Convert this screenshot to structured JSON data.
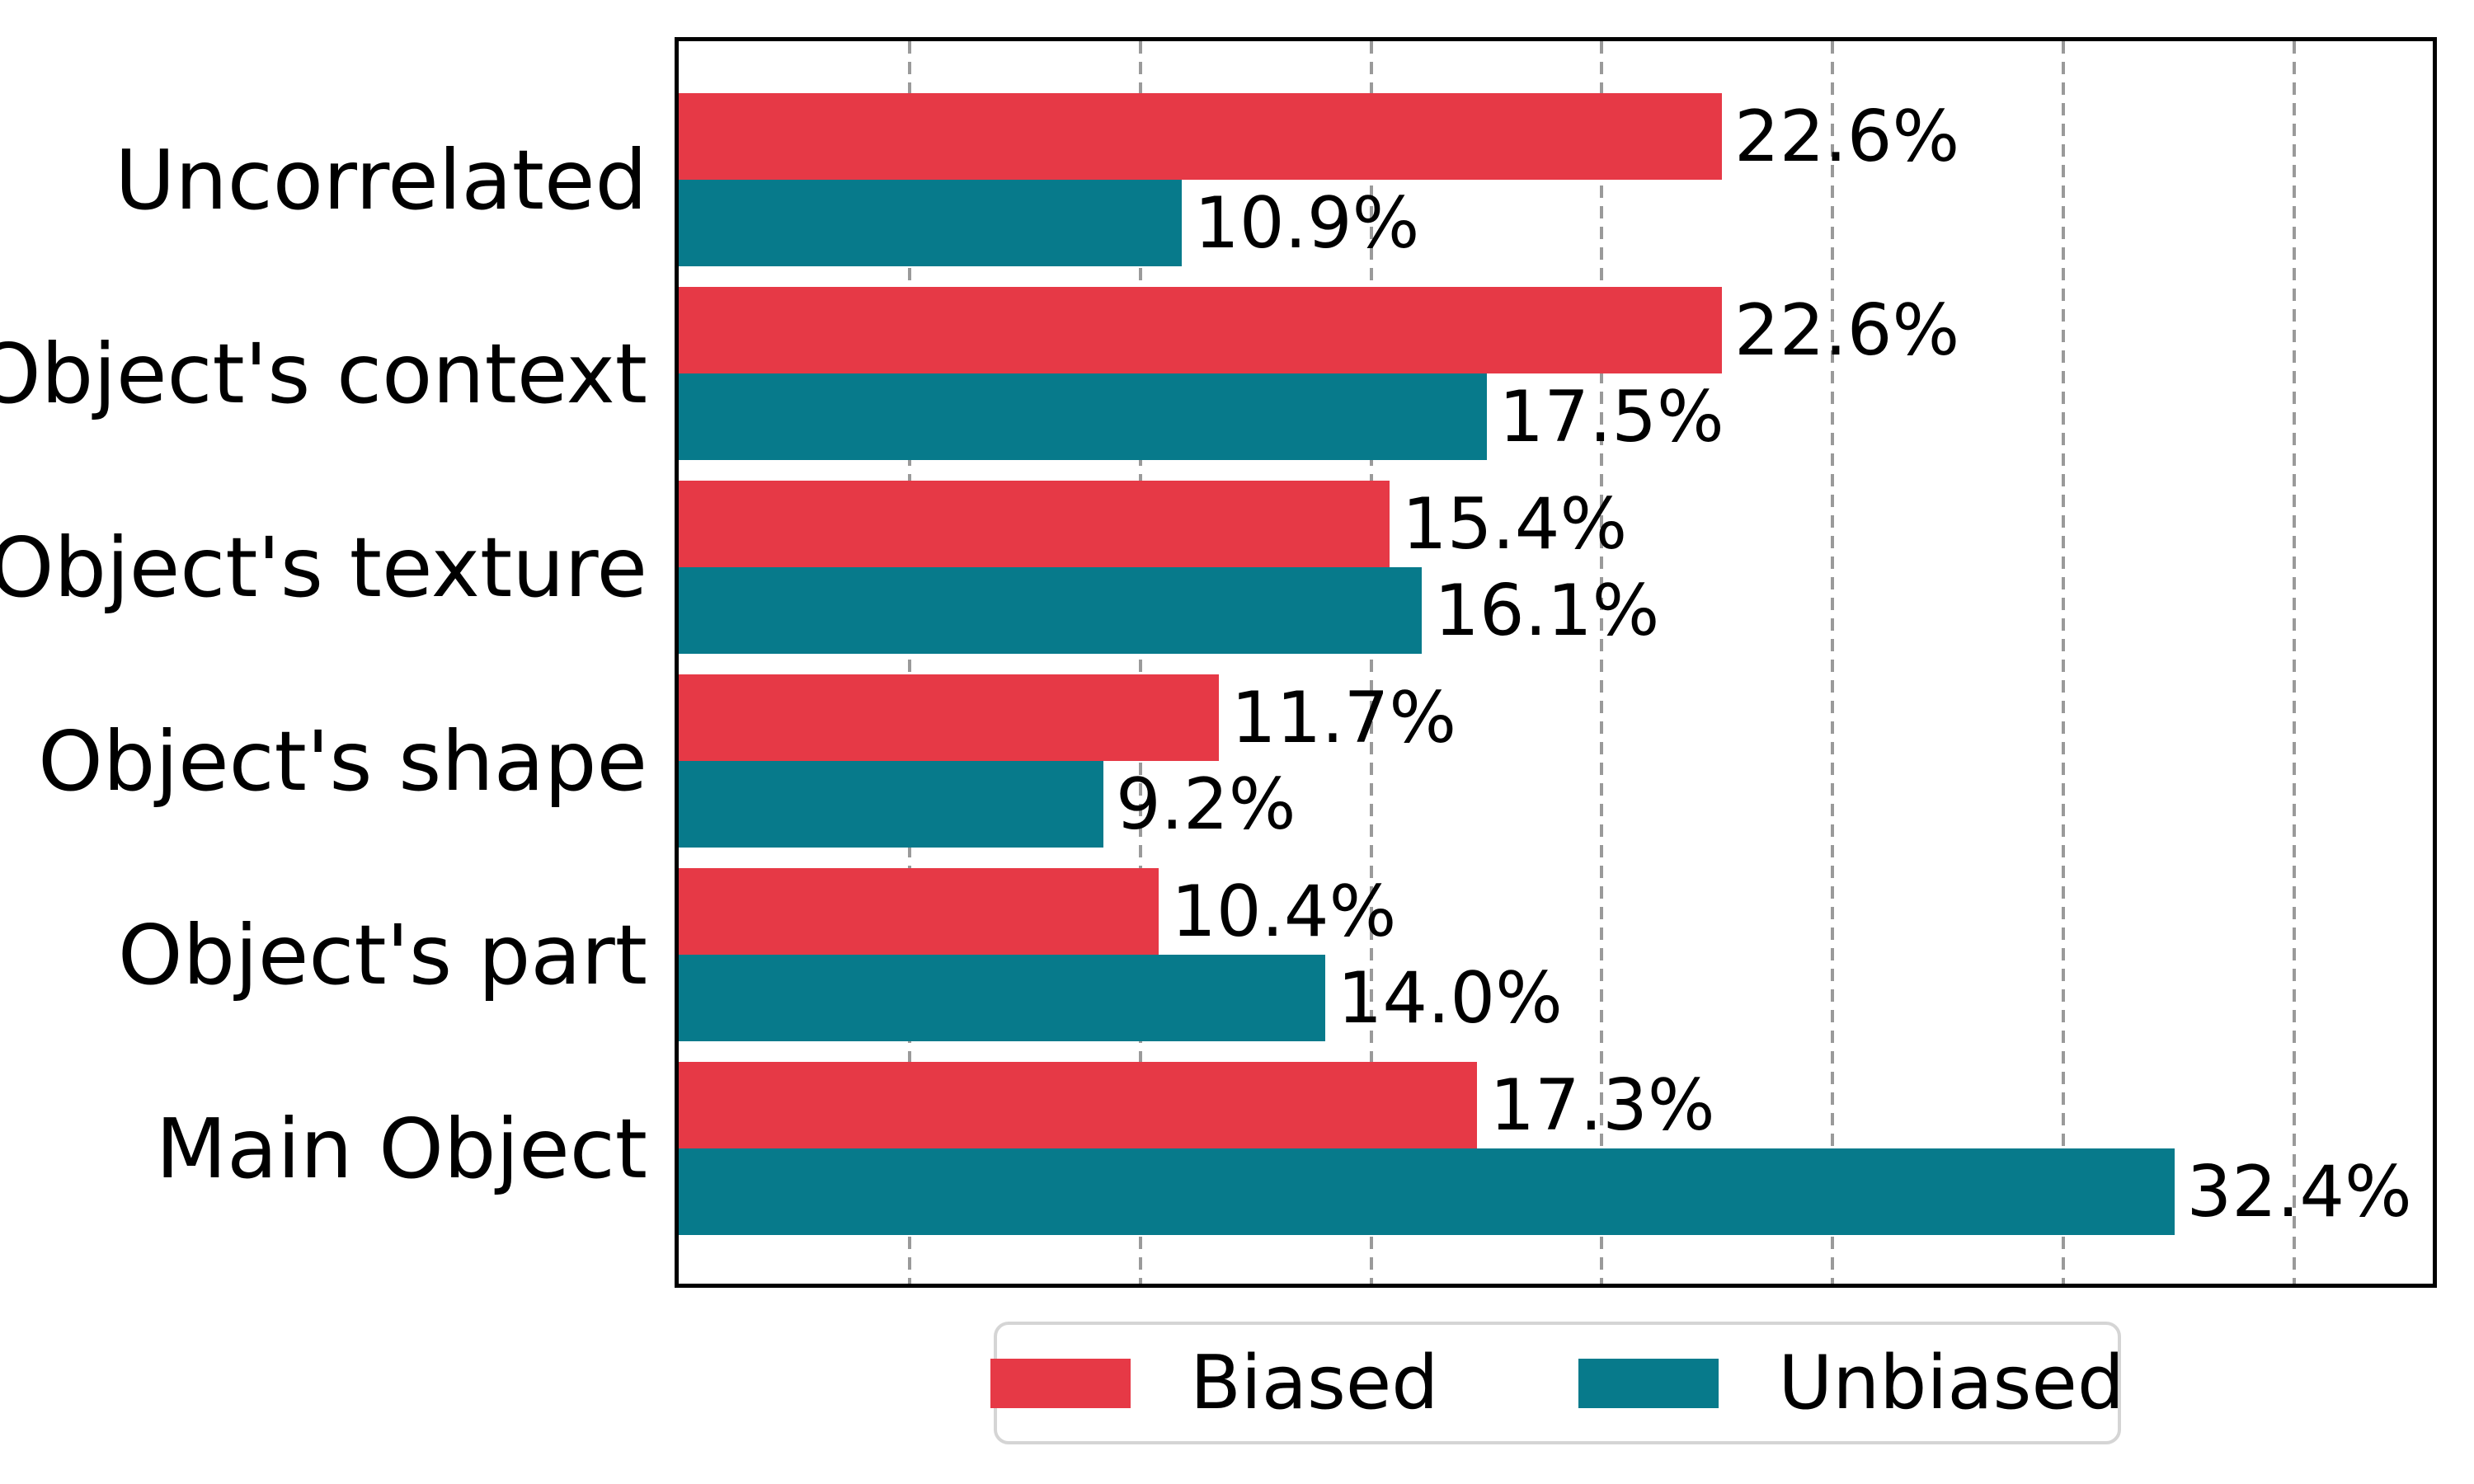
{
  "chart_data": {
    "type": "bar",
    "orientation": "horizontal",
    "title": "",
    "xlabel": "",
    "ylabel": "",
    "categories": [
      "Uncorrelated",
      "Object's context",
      "Object's texture",
      "Object's shape",
      "Object's part",
      "Main Object"
    ],
    "series": [
      {
        "name": "Biased",
        "color": "#E63946",
        "values": [
          22.6,
          22.6,
          15.4,
          11.7,
          10.4,
          17.3
        ]
      },
      {
        "name": "Unbiased",
        "color": "#077A8B",
        "values": [
          10.9,
          17.5,
          16.1,
          9.2,
          14.0,
          32.4
        ]
      }
    ],
    "value_labels": [
      [
        "22.6%",
        "22.6%",
        "15.4%",
        "11.7%",
        "10.4%",
        "17.3%"
      ],
      [
        "10.9%",
        "17.5%",
        "16.1%",
        "9.2%",
        "14.0%",
        "32.4%"
      ]
    ],
    "xlim": [
      0,
      38
    ],
    "gridlines": [
      5,
      10,
      15,
      20,
      25,
      30,
      35
    ],
    "grid_style": "vertical-dashed-gray",
    "axis_tick_labels_visible": false,
    "frame_color": "#000000",
    "gridline_color": "#9a9a9a",
    "legend": {
      "position": "bottom-center",
      "border_color": "#d5d5d5",
      "entries": [
        {
          "label": "Biased",
          "color": "#E63946"
        },
        {
          "label": "Unbiased",
          "color": "#077A8B"
        }
      ]
    }
  }
}
